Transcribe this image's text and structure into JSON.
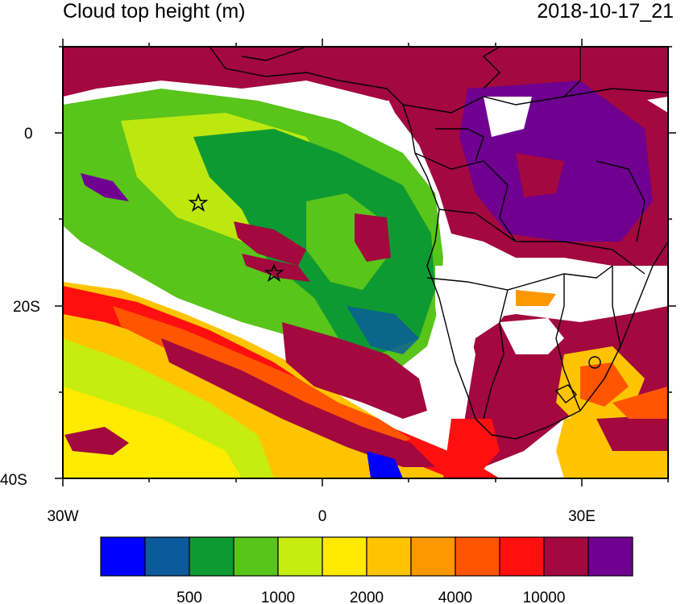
{
  "title": "Cloud top height (m)",
  "timestamp": "2018-10-17_21",
  "map": {
    "lat_labels": [
      "0",
      "20S",
      "40S"
    ],
    "lon_labels": [
      "30W",
      "0",
      "30E"
    ],
    "lat_values": [
      0,
      -20,
      -40
    ],
    "lon_values": [
      -30,
      0,
      30
    ],
    "extent": {
      "lon_min": -30,
      "lon_max": 40,
      "lat_min": -40,
      "lat_max": 10
    },
    "markers": [
      {
        "name": "star-marker",
        "lon": -14.4,
        "lat": -7.9
      },
      {
        "name": "star-marker",
        "lon": -5.7,
        "lat": -15.9
      }
    ]
  },
  "colorbar": {
    "colors": [
      "#0000ff",
      "#0a5a9c",
      "#0e9a32",
      "#59c41a",
      "#c6ec10",
      "#ffea00",
      "#ffc400",
      "#ff9800",
      "#ff5500",
      "#ff0f0f",
      "#a3083f",
      "#6f0090"
    ],
    "labels": [
      "500",
      "1000",
      "2000",
      "4000",
      "10000"
    ]
  }
}
